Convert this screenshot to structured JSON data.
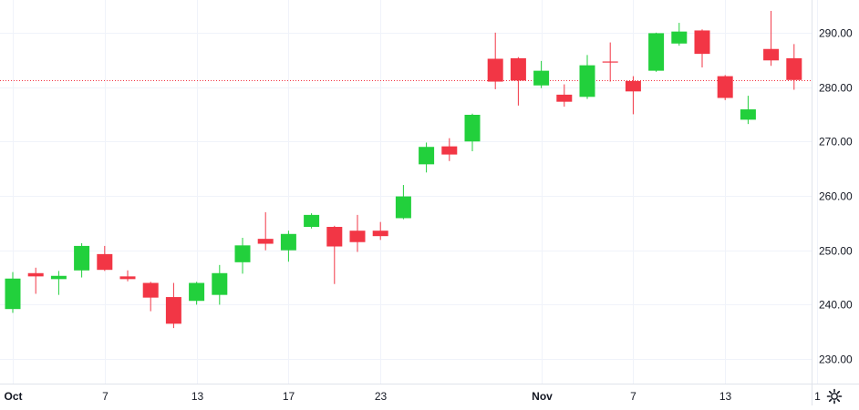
{
  "chart_data": {
    "type": "candlestick",
    "title": "",
    "xlabel": "",
    "ylabel": "",
    "ylim": [
      225.5,
      296.0
    ],
    "grid": true,
    "y_ticks": [
      "230.00",
      "240.00",
      "250.00",
      "260.00",
      "270.00",
      "280.00",
      "290.00"
    ],
    "x_ticks": [
      {
        "label": "Oct",
        "bar": 0,
        "bold": true
      },
      {
        "label": "7",
        "bar": 4,
        "bold": false
      },
      {
        "label": "13",
        "bar": 8,
        "bold": false
      },
      {
        "label": "17",
        "bar": 12,
        "bold": false
      },
      {
        "label": "23",
        "bar": 16,
        "bold": false
      },
      {
        "label": "Nov",
        "bar": 23,
        "bold": true
      },
      {
        "label": "7",
        "bar": 27,
        "bold": false
      },
      {
        "label": "13",
        "bar": 31,
        "bold": false
      },
      {
        "label": "1",
        "bar": 35,
        "bold": false
      }
    ],
    "last_price_line": 281.3,
    "up_color": "#22d03c",
    "down_color": "#f23645",
    "candles": [
      {
        "o": 239.2,
        "h": 246.0,
        "l": 238.5,
        "c": 244.8
      },
      {
        "o": 245.8,
        "h": 246.8,
        "l": 242.0,
        "c": 245.2
      },
      {
        "o": 244.7,
        "h": 246.2,
        "l": 241.8,
        "c": 245.3
      },
      {
        "o": 246.3,
        "h": 251.3,
        "l": 245.0,
        "c": 250.8
      },
      {
        "o": 249.3,
        "h": 250.8,
        "l": 246.2,
        "c": 246.4
      },
      {
        "o": 245.2,
        "h": 246.3,
        "l": 244.3,
        "c": 244.7
      },
      {
        "o": 244.0,
        "h": 244.2,
        "l": 238.8,
        "c": 241.3
      },
      {
        "o": 241.4,
        "h": 244.0,
        "l": 235.7,
        "c": 236.5
      },
      {
        "o": 240.7,
        "h": 244.2,
        "l": 240.0,
        "c": 244.0
      },
      {
        "o": 241.8,
        "h": 247.3,
        "l": 240.0,
        "c": 245.8
      },
      {
        "o": 247.8,
        "h": 252.3,
        "l": 245.7,
        "c": 250.9
      },
      {
        "o": 252.1,
        "h": 257.0,
        "l": 250.0,
        "c": 251.2
      },
      {
        "o": 250.0,
        "h": 253.6,
        "l": 247.9,
        "c": 253.0
      },
      {
        "o": 254.3,
        "h": 256.8,
        "l": 254.0,
        "c": 256.5
      },
      {
        "o": 254.3,
        "h": 254.5,
        "l": 243.8,
        "c": 250.7
      },
      {
        "o": 253.6,
        "h": 256.5,
        "l": 249.7,
        "c": 251.5
      },
      {
        "o": 253.6,
        "h": 255.2,
        "l": 251.9,
        "c": 252.6
      },
      {
        "o": 255.9,
        "h": 262.0,
        "l": 255.7,
        "c": 259.9
      },
      {
        "o": 265.8,
        "h": 269.8,
        "l": 264.3,
        "c": 269.0
      },
      {
        "o": 269.1,
        "h": 270.6,
        "l": 266.4,
        "c": 267.6
      },
      {
        "o": 270.0,
        "h": 275.1,
        "l": 268.2,
        "c": 274.9
      },
      {
        "o": 285.2,
        "h": 290.0,
        "l": 279.6,
        "c": 281.0
      },
      {
        "o": 285.3,
        "h": 285.5,
        "l": 276.6,
        "c": 281.2
      },
      {
        "o": 280.3,
        "h": 284.8,
        "l": 279.8,
        "c": 283.0
      },
      {
        "o": 278.6,
        "h": 280.5,
        "l": 276.4,
        "c": 277.3
      },
      {
        "o": 278.2,
        "h": 285.9,
        "l": 277.8,
        "c": 284.0
      },
      {
        "o": 284.7,
        "h": 288.2,
        "l": 281.0,
        "c": 284.5
      },
      {
        "o": 281.1,
        "h": 282.0,
        "l": 275.0,
        "c": 279.2
      },
      {
        "o": 283.0,
        "h": 290.0,
        "l": 282.8,
        "c": 289.9
      },
      {
        "o": 288.0,
        "h": 291.8,
        "l": 287.6,
        "c": 290.2
      },
      {
        "o": 290.4,
        "h": 290.6,
        "l": 283.6,
        "c": 286.1
      },
      {
        "o": 282.0,
        "h": 282.2,
        "l": 277.6,
        "c": 278.0
      },
      {
        "o": 274.0,
        "h": 278.4,
        "l": 273.2,
        "c": 275.9
      },
      {
        "o": 287.0,
        "h": 294.0,
        "l": 283.9,
        "c": 284.9
      },
      {
        "o": 285.3,
        "h": 287.9,
        "l": 279.5,
        "c": 281.3
      }
    ]
  },
  "settings_icon": "gear-icon"
}
